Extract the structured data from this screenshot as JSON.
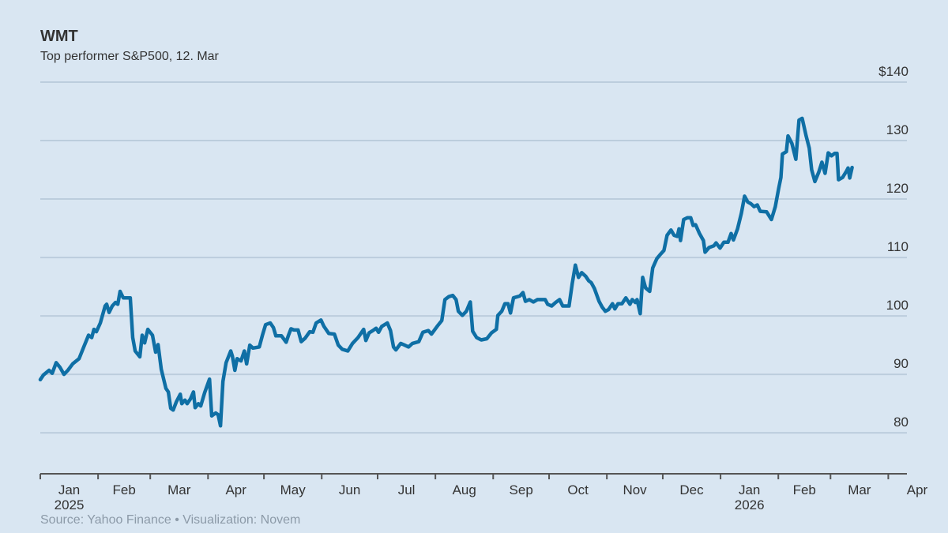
{
  "chart_data": {
    "type": "line",
    "title": "WMT",
    "subtitle": "Top performer S&P500, 12. Mar",
    "source": "Source: Yahoo Finance  •  Visualization: Novem",
    "xlim": [
      0,
      465
    ],
    "xticks": [
      {
        "value": 0,
        "label": "Jan"
      },
      {
        "value": 31,
        "label": "Feb"
      },
      {
        "value": 59,
        "label": "Mar"
      },
      {
        "value": 90,
        "label": "Apr"
      },
      {
        "value": 120,
        "label": "May"
      },
      {
        "value": 151,
        "label": "Jun"
      },
      {
        "value": 181,
        "label": "Jul"
      },
      {
        "value": 212,
        "label": "Aug"
      },
      {
        "value": 243,
        "label": "Sep"
      },
      {
        "value": 273,
        "label": "Oct"
      },
      {
        "value": 304,
        "label": "Nov"
      },
      {
        "value": 334,
        "label": "Dec"
      },
      {
        "value": 365,
        "label": "Jan"
      },
      {
        "value": 396,
        "label": "Feb"
      },
      {
        "value": 424,
        "label": "Mar"
      },
      {
        "value": 455,
        "label": "Apr"
      }
    ],
    "year_labels": [
      {
        "value": 0,
        "label": "2025"
      },
      {
        "value": 365,
        "label": "2026"
      }
    ],
    "ylim": [
      73,
      140
    ],
    "yticks": [
      80,
      90,
      100,
      110,
      120,
      130,
      {
        "value": 140,
        "label": "$140"
      }
    ],
    "grid": true,
    "series": [
      {
        "name": "WMT",
        "color": "#0f6fa5",
        "x": [
          0,
          1.7,
          4.7,
          6.4,
          8.5,
          10.6,
          12.7,
          14.8,
          17.4,
          20.8,
          23.3,
          25.9,
          27.6,
          28.8,
          30.1,
          32.2,
          34.8,
          35.6,
          36.9,
          38.6,
          40.3,
          41.6,
          42.8,
          44.5,
          46.6,
          48.3,
          49.6,
          50.9,
          53.4,
          54.7,
          56.0,
          57.7,
          60.2,
          61.9,
          63.2,
          64.9,
          67.4,
          68.7,
          70.0,
          71.3,
          73.0,
          75.1,
          75.9,
          77.6,
          78.8,
          80.6,
          82.2,
          83.1,
          84.8,
          86.1,
          88.2,
          90.8,
          92.0,
          94.1,
          95.4,
          96.7,
          98.0,
          99.7,
          102.2,
          103.1,
          104.4,
          105.6,
          107.7,
          109.5,
          110.7,
          112.4,
          114.1,
          117.5,
          119.2,
          120.9,
          123.4,
          125.1,
          126.4,
          129.4,
          131.9,
          133.2,
          134.5,
          136.1,
          138.3,
          140.0,
          142.1,
          144.6,
          146.3,
          148.0,
          150.6,
          152.2,
          154.8,
          157.8,
          159.9,
          162.0,
          165.0,
          167.5,
          170.5,
          173.5,
          174.7,
          176.4,
          178.5,
          180.2,
          181.5,
          183.2,
          186.2,
          187.9,
          189.5,
          190.8,
          193.4,
          195.5,
          197.6,
          199.7,
          203.1,
          205.3,
          208.2,
          209.9,
          212.9,
          215.4,
          217.1,
          219.2,
          221.3,
          223.1,
          224.3,
          226.5,
          228.6,
          230.7,
          232.0,
          234.1,
          236.6,
          239.6,
          242.1,
          244.7,
          245.5,
          247.6,
          249.3,
          251.0,
          252.3,
          253.9,
          257.3,
          259.0,
          260.3,
          262.4,
          264.6,
          266.7,
          270.9,
          272.2,
          274.4,
          276.5,
          278.6,
          280.3,
          283.7,
          285.4,
          287.1,
          288.8,
          290.5,
          292.6,
          294.3,
          295.6,
          297.3,
          299.8,
          301.5,
          303.2,
          304.9,
          307.0,
          308.3,
          310.0,
          312.1,
          314.2,
          316.4,
          317.6,
          319.3,
          320.2,
          321.9,
          323.2,
          324.8,
          327.0,
          328.6,
          330.8,
          332.9,
          334.6,
          336.3,
          338.4,
          340.1,
          341.8,
          342.7,
          343.5,
          345.2,
          347.3,
          349.0,
          350.3,
          351.6,
          353.7,
          355.8,
          356.7,
          358.8,
          361.4,
          362.6,
          364.7,
          366.8,
          369.0,
          370.7,
          371.9,
          374.1,
          376.2,
          377.9,
          379.6,
          381.3,
          383.0,
          384.7,
          386.3,
          389.7,
          392.3,
          394.4,
          396.1,
          397.4,
          398.2,
          400.3,
          401.2,
          403.3,
          405.4,
          407.1,
          408.8,
          410.9,
          412.6,
          413.9,
          415.6,
          417.7,
          419.4,
          421.1,
          422.8,
          424.5,
          426.2,
          427.5,
          428.3,
          430.5,
          432.6,
          433.4,
          434.3,
          435.6
        ],
        "values": [
          89.1,
          89.9,
          90.7,
          90.2,
          92.0,
          91.2,
          90.0,
          90.7,
          91.8,
          92.7,
          94.7,
          96.7,
          96.3,
          97.7,
          97.3,
          98.8,
          101.7,
          102.0,
          100.6,
          101.7,
          102.3,
          102.0,
          104.2,
          103.1,
          103.1,
          103.1,
          96.3,
          94.0,
          93.0,
          96.7,
          95.4,
          97.7,
          96.7,
          93.8,
          95.1,
          90.9,
          87.6,
          87.0,
          84.2,
          83.9,
          85.3,
          86.6,
          85.0,
          85.6,
          85.0,
          85.8,
          87.0,
          84.3,
          85.0,
          84.6,
          86.9,
          89.2,
          82.9,
          83.4,
          83.1,
          81.2,
          88.8,
          92.0,
          94.0,
          93.1,
          90.7,
          92.7,
          92.3,
          94.0,
          91.8,
          95.0,
          94.5,
          94.7,
          96.7,
          98.5,
          98.8,
          98.0,
          96.6,
          96.6,
          95.5,
          96.7,
          97.8,
          97.6,
          97.6,
          95.6,
          96.2,
          97.3,
          97.2,
          98.8,
          99.3,
          98.2,
          97.0,
          96.9,
          95.0,
          94.3,
          94.0,
          95.3,
          96.3,
          97.7,
          95.8,
          97.1,
          97.5,
          97.9,
          97.2,
          98.2,
          98.8,
          97.5,
          94.7,
          94.2,
          95.3,
          95.0,
          94.7,
          95.3,
          95.6,
          97.2,
          97.5,
          96.9,
          98.2,
          99.2,
          102.8,
          103.3,
          103.5,
          102.8,
          100.8,
          100.1,
          100.8,
          102.4,
          97.4,
          96.3,
          95.9,
          96.1,
          97.1,
          97.7,
          100.1,
          100.8,
          102.1,
          102.1,
          100.5,
          103.1,
          103.4,
          104.0,
          102.5,
          102.8,
          102.4,
          102.8,
          102.8,
          102.0,
          101.7,
          102.3,
          102.8,
          101.7,
          101.7,
          105.5,
          108.7,
          106.6,
          107.4,
          106.8,
          106.0,
          105.7,
          104.7,
          102.5,
          101.5,
          100.8,
          101.1,
          102.1,
          101.2,
          102.1,
          102.1,
          103.1,
          102.0,
          102.8,
          102.3,
          102.8,
          100.4,
          106.6,
          104.8,
          104.2,
          108.2,
          109.8,
          110.6,
          111.2,
          113.8,
          114.7,
          113.8,
          113.6,
          114.9,
          112.9,
          116.5,
          116.8,
          116.8,
          115.5,
          115.6,
          114.1,
          112.9,
          110.9,
          111.7,
          112.0,
          112.5,
          111.6,
          112.6,
          112.6,
          114.1,
          113.0,
          114.9,
          117.6,
          120.5,
          119.5,
          119.2,
          118.7,
          119.0,
          117.9,
          117.8,
          116.5,
          118.7,
          121.7,
          123.7,
          127.7,
          128.1,
          130.8,
          129.5,
          126.8,
          133.5,
          133.8,
          130.8,
          128.7,
          125.0,
          123.0,
          124.6,
          126.3,
          124.4,
          127.9,
          127.4,
          127.8,
          127.8,
          123.3,
          123.7,
          124.8,
          125.3,
          123.6,
          125.4
        ]
      }
    ]
  }
}
